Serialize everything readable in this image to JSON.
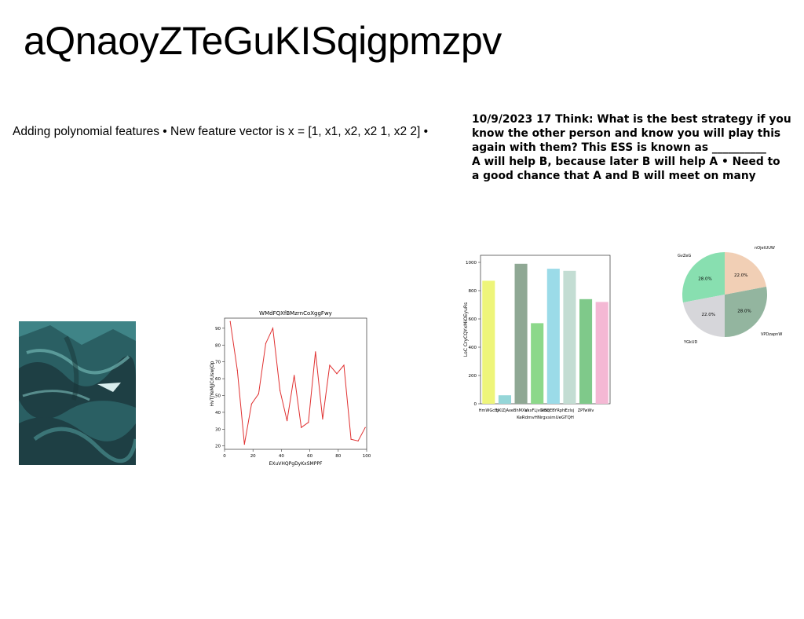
{
  "title": "aQnaoyZTeGuKISqigpmzpv",
  "text_block_1": "Adding polynomial features • New feature vector is x = [1, x1, x2, x2 1, x2 2] •",
  "text_block_2_lines": [
    "10/9/2023 17 Think: What is the best strategy if you",
    "know the other person and know you will play this",
    "again with them? This ESS is known as __________",
    "A will help B, because later B will help A • Need to",
    "a good chance that A and B will meet on many"
  ],
  "photo": {
    "description_icon": "landscape-photo-icon",
    "colors": [
      "#2a5f63",
      "#3f8487",
      "#1e3f44",
      "#6fb3b0"
    ]
  },
  "chart_data": [
    {
      "type": "line",
      "title": "WMdFQXfBMzrnCoXggFwy",
      "xlabel": "EXuVHQPgDyKxSMPPF",
      "ylabel": "HvTJYeMjJCrUswjOp",
      "color": "#e03030",
      "x": [
        4,
        9,
        14,
        19,
        24,
        29,
        34,
        39,
        44,
        49,
        54,
        59,
        64,
        69,
        74,
        79,
        84,
        89,
        94,
        99
      ],
      "y": [
        94,
        65,
        21,
        45,
        51,
        81,
        90,
        53,
        35,
        62,
        31,
        34,
        76,
        36,
        68,
        63,
        68,
        24,
        23,
        31
      ],
      "xlim": [
        0,
        100
      ],
      "ylim": [
        18,
        96
      ],
      "xticks": [
        "0",
        "20",
        "40",
        "60",
        "80",
        "100"
      ],
      "xtick_values": [
        0,
        20,
        40,
        60,
        80,
        100
      ],
      "yticks": [
        "20",
        "30",
        "40",
        "50",
        "60",
        "70",
        "80",
        "90"
      ],
      "ytick_values": [
        20,
        30,
        40,
        50,
        60,
        70,
        80,
        90
      ]
    },
    {
      "type": "bar",
      "title": "",
      "xlabel": "KeRdmvHNrgxsimUeGTQH",
      "ylabel": "LoC CryCQYxMiOEyuRs",
      "categories": [
        "HmWGcBJ",
        "bKlZjAxe",
        "BhMXVi",
        "axxFLjvGrSq",
        "NbOEBYRphi",
        "Ezlxj",
        "ZPTwWv",
        ""
      ],
      "tick_labels": [
        "HmWGcBJ",
        "bKlZjAxe",
        "BhMXVi",
        "axxFLjvGrSq",
        "NbOEBYRphi",
        "Ezlxj",
        "ZPTwWv"
      ],
      "values": [
        870,
        60,
        990,
        570,
        955,
        940,
        740,
        720
      ],
      "colors": [
        "#eef57a",
        "#95d6d8",
        "#8fa894",
        "#8cd88a",
        "#9bdbe8",
        "#c3ddd3",
        "#7fc98a",
        "#f4b8d4"
      ],
      "ylim": [
        0,
        1050
      ],
      "yticks": [
        "0",
        "200",
        "400",
        "600",
        "800",
        "1000"
      ],
      "ytick_values": [
        0,
        200,
        400,
        600,
        800,
        1000
      ]
    },
    {
      "type": "pie",
      "labels": [
        "GvZeG",
        "nOjetUUW",
        "VPDzapnW",
        "YGkUD"
      ],
      "values": [
        28.0,
        22.0,
        28.0,
        22.0
      ],
      "value_labels": [
        "28.0%",
        "22.0%",
        "28.0%",
        "22.0%"
      ],
      "colors": [
        "#88dfb0",
        "#d6d6da",
        "#93b59f",
        "#f1cfb5"
      ]
    }
  ]
}
